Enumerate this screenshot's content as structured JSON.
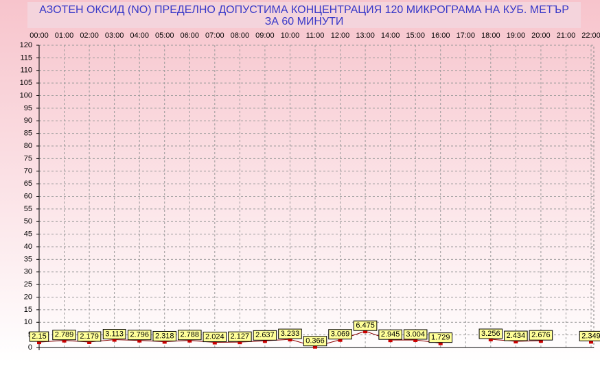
{
  "chart_data": {
    "type": "line",
    "title": "АЗОТЕН ОКСИД   (NO)     ПРЕДЕЛНО ДОПУСТИМА КОНЦЕНТРАЦИЯ 120 МИКРОГРАМА  НА КУБ. МЕТЪР",
    "subtitle": "ЗА 60 МИНУТИ",
    "categories": [
      "00:00",
      "01:00",
      "02:00",
      "03:00",
      "04:00",
      "05:00",
      "06:00",
      "07:00",
      "08:00",
      "09:00",
      "10:00",
      "11:00",
      "12:00",
      "13:00",
      "14:00",
      "15:00",
      "16:00",
      "17:00",
      "18:00",
      "19:00",
      "20:00",
      "21:00",
      "22:00"
    ],
    "values": [
      2.15,
      2.789,
      2.179,
      3.113,
      2.796,
      2.318,
      2.788,
      2.024,
      2.127,
      2.637,
      3.233,
      0.366,
      3.069,
      6.475,
      2.945,
      3.004,
      1.729,
      null,
      3.256,
      2.434,
      2.676,
      null,
      2.349
    ],
    "color": "#cc0000",
    "ylim": [
      0,
      120
    ],
    "yticks": [
      0,
      5,
      10,
      15,
      20,
      25,
      30,
      35,
      40,
      45,
      50,
      55,
      60,
      65,
      70,
      75,
      80,
      85,
      90,
      95,
      100,
      105,
      110,
      115,
      120
    ],
    "grid": true
  }
}
